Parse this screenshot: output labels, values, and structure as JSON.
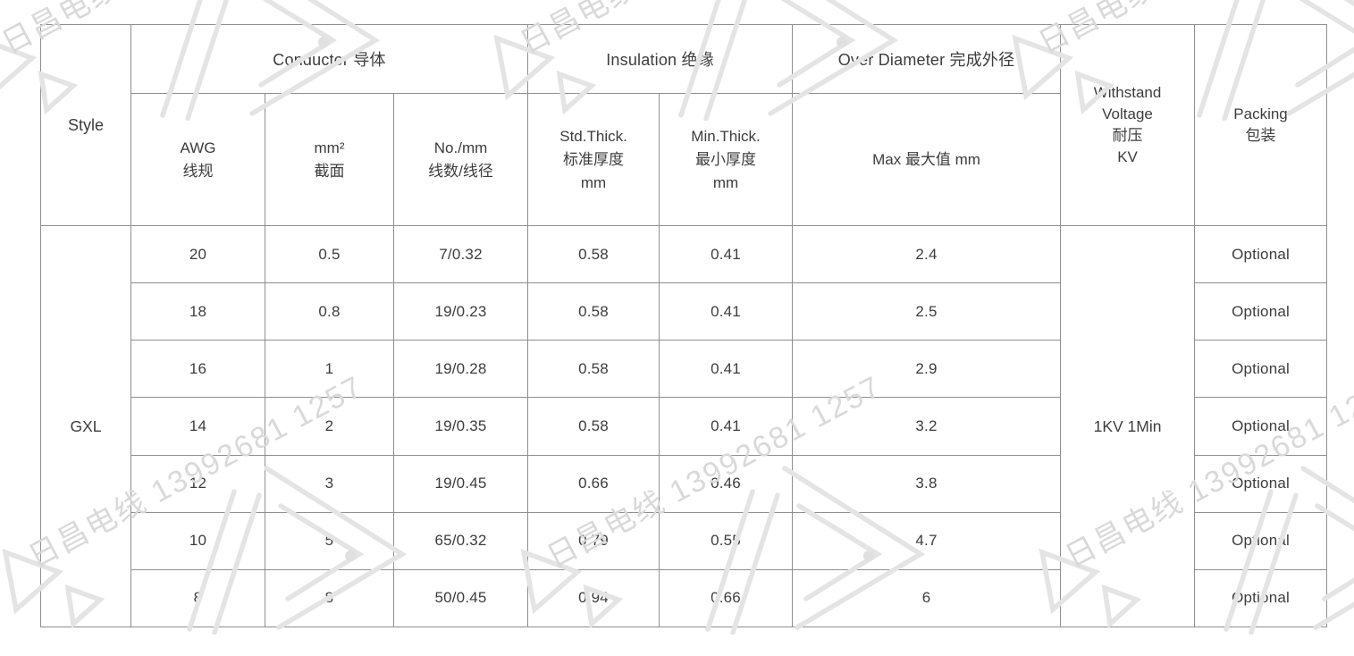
{
  "watermark": {
    "text": "日昌电线 13992681 1257"
  },
  "table": {
    "style_header": "Style",
    "groups": {
      "conductor": "Conductor 导体",
      "insulation": "Insulation 绝缘",
      "over_diameter": "Over Diameter 完成外径"
    },
    "subheaders": {
      "awg": "AWG\n线规",
      "mm2": "mm²\n截面",
      "no_mm": "No./mm\n线数/线径",
      "std_thick": "Std.Thick.\n标准厚度\nmm",
      "min_thick": "Min.Thick.\n最小厚度\nmm",
      "max": "Max 最大值 mm"
    },
    "withstand_header": "Withstand\nVoltage\n耐压\nKV",
    "packing_header": "Packing\n包装",
    "style_value": "GXL",
    "withstand_value": "1KV 1Min",
    "rows": [
      {
        "awg": "20",
        "mm2": "0.5",
        "no_mm": "7/0.32",
        "std": "0.58",
        "min": "0.41",
        "max": "2.4",
        "packing": "Optional"
      },
      {
        "awg": "18",
        "mm2": "0.8",
        "no_mm": "19/0.23",
        "std": "0.58",
        "min": "0.41",
        "max": "2.5",
        "packing": "Optional"
      },
      {
        "awg": "16",
        "mm2": "1",
        "no_mm": "19/0.28",
        "std": "0.58",
        "min": "0.41",
        "max": "2.9",
        "packing": "Optional"
      },
      {
        "awg": "14",
        "mm2": "2",
        "no_mm": "19/0.35",
        "std": "0.58",
        "min": "0.41",
        "max": "3.2",
        "packing": "Optional"
      },
      {
        "awg": "12",
        "mm2": "3",
        "no_mm": "19/0.45",
        "std": "0.66",
        "min": "0.46",
        "max": "3.8",
        "packing": "Optional"
      },
      {
        "awg": "10",
        "mm2": "5",
        "no_mm": "65/0.32",
        "std": "0.79",
        "min": "0.55",
        "max": "4.7",
        "packing": "Optional"
      },
      {
        "awg": "8",
        "mm2": "8",
        "no_mm": "50/0.45",
        "std": "0.94",
        "min": "0.66",
        "max": "6",
        "packing": "Optional"
      }
    ]
  },
  "colors": {
    "border": "#8f8f8f",
    "text": "#3d3d3d",
    "watermark": "#dedede",
    "background": "#ffffff"
  }
}
